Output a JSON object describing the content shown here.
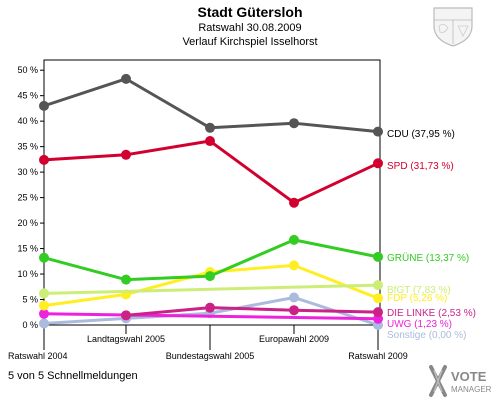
{
  "header": {
    "title": "Stadt Gütersloh",
    "subtitle": "Ratswahl 30.08.2009",
    "subtitle2": "Verlauf Kirchspiel Isselhorst"
  },
  "footer": {
    "note": "5 von 5 Schnellmeldungen",
    "logo_line1": "VOTE",
    "logo_line2": "MANAGER"
  },
  "chart_data": {
    "type": "line",
    "title": "Stadt Gütersloh",
    "x": [
      "Ratswahl 2004",
      "Landtagswahl 2005",
      "Bundestagswahl 2005",
      "Europawahl 2009",
      "Ratswahl 2009"
    ],
    "ylim": [
      0,
      52
    ],
    "yticks": [
      0,
      5,
      10,
      15,
      20,
      25,
      30,
      35,
      40,
      45,
      50
    ],
    "yunit": "%",
    "grid": false,
    "series": [
      {
        "name": "CDU",
        "label": "CDU (37,95 %)",
        "color": "#555555",
        "values": [
          43.0,
          48.3,
          38.7,
          39.6,
          37.95
        ]
      },
      {
        "name": "SPD",
        "label": "SPD (31,73 %)",
        "color": "#d2002e",
        "values": [
          32.4,
          33.4,
          36.1,
          24.0,
          31.73
        ]
      },
      {
        "name": "GRÜNE",
        "label": "GRÜNE (13,37 %)",
        "color": "#33cc22",
        "values": [
          13.2,
          8.9,
          9.6,
          16.7,
          13.37
        ]
      },
      {
        "name": "BfGT",
        "label": "BfGT (7,83 %)",
        "color": "#ccee77",
        "values": [
          6.2,
          null,
          null,
          null,
          7.83
        ]
      },
      {
        "name": "FDP",
        "label": "FDP (5,26 %)",
        "color": "#ffee22",
        "values": [
          3.8,
          6.0,
          10.4,
          11.7,
          5.26
        ]
      },
      {
        "name": "DIE LINKE",
        "label": "DIE LINKE (2,53 %)",
        "color": "#cc2288",
        "values": [
          null,
          1.9,
          3.4,
          2.9,
          2.53
        ]
      },
      {
        "name": "UWG",
        "label": "UWG (1,23 %)",
        "color": "#ee22dd",
        "values": [
          2.2,
          null,
          null,
          null,
          1.23
        ]
      },
      {
        "name": "Sonstige",
        "label": "Sonstige (0,00 %)",
        "color": "#aabbdd",
        "values": [
          0.3,
          1.3,
          2.3,
          5.4,
          0.0
        ]
      }
    ]
  }
}
